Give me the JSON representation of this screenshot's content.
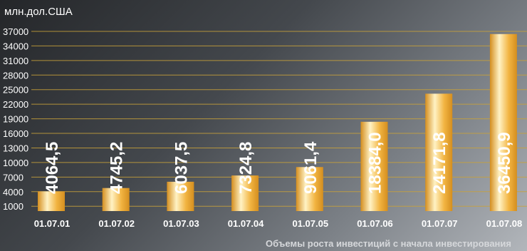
{
  "chart_data": {
    "type": "bar",
    "unit_label": "млн.дол.США",
    "caption": "Объемы роста инвестиций с начала инвестирования",
    "categories": [
      "01.07.01",
      "01.07.02",
      "01.07.03",
      "01.07.04",
      "01.07.05",
      "01.07.06",
      "01.07.07",
      "01.07.08"
    ],
    "values": [
      4064.5,
      4745.2,
      6037.5,
      7324.8,
      9061.4,
      18384.0,
      24171.8,
      36450.9
    ],
    "value_labels": [
      "4064,5",
      "4745,2",
      "6037,5",
      "7324,8",
      "9061,4",
      "18384,0",
      "24171,8",
      "36450,9"
    ],
    "y_ticks": [
      1000,
      4000,
      7000,
      10000,
      13000,
      16000,
      19000,
      22000,
      25000,
      28000,
      31000,
      34000,
      37000
    ],
    "ylim": [
      0,
      37000
    ],
    "grid": true,
    "colors": {
      "bar_light": "#fff2c4",
      "bar_mid": "#f2b441",
      "bar_dark": "#d48e1f",
      "grid": "#c9a23a"
    }
  }
}
